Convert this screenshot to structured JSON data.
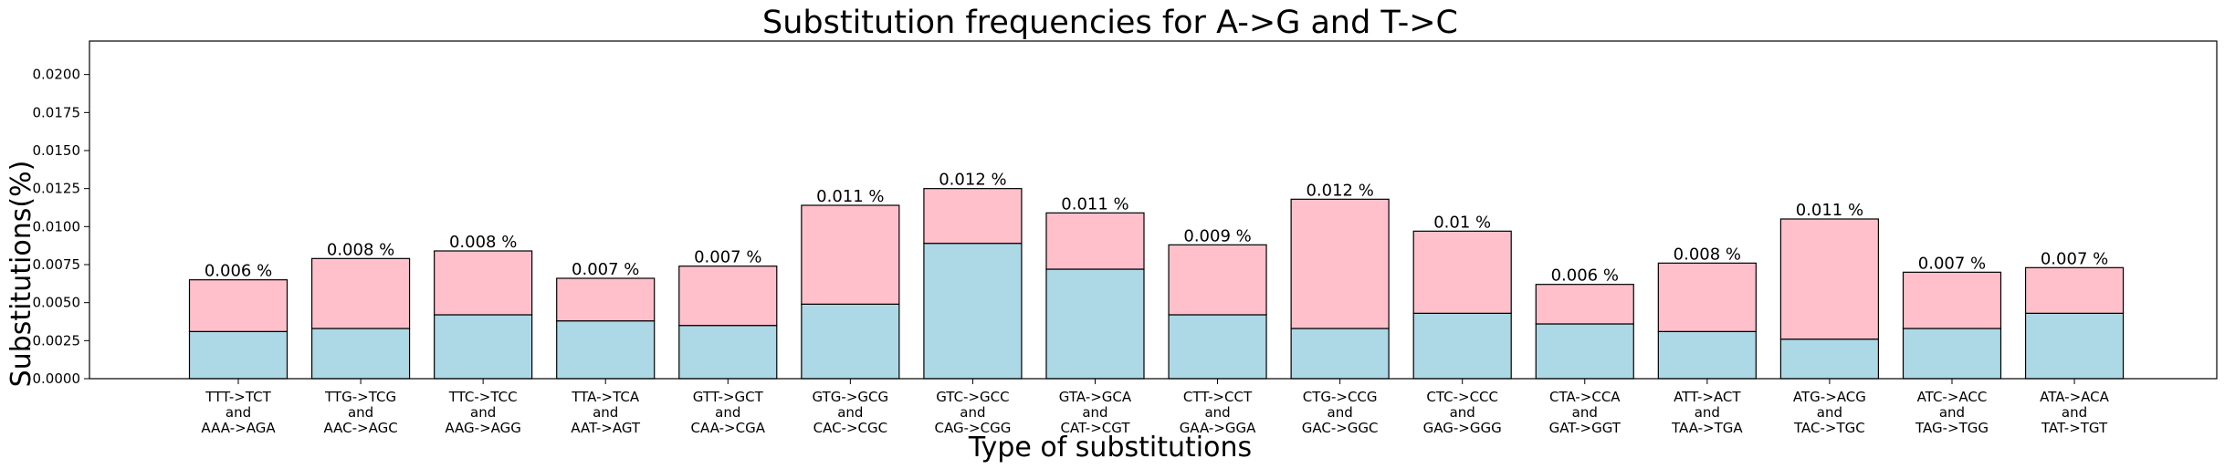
{
  "chart_data": {
    "type": "bar",
    "stacked": true,
    "title": "Substitution frequencies for A->G and T->C",
    "xlabel": "Type of substitutions",
    "ylabel": "Substitutions(%)",
    "ylim": [
      0,
      0.0222
    ],
    "yticks": [
      "0.0000",
      "0.0025",
      "0.0050",
      "0.0075",
      "0.0100",
      "0.0125",
      "0.0150",
      "0.0175",
      "0.0200"
    ],
    "grid": false,
    "categories": [
      [
        "TTT->TCT",
        "and",
        "AAA->AGA"
      ],
      [
        "TTG->TCG",
        "and",
        "AAC->AGC"
      ],
      [
        "TTC->TCC",
        "and",
        "AAG->AGG"
      ],
      [
        "TTA->TCA",
        "and",
        "AAT->AGT"
      ],
      [
        "GTT->GCT",
        "and",
        "CAA->CGA"
      ],
      [
        "GTG->GCG",
        "and",
        "CAC->CGC"
      ],
      [
        "GTC->GCC",
        "and",
        "CAG->CGG"
      ],
      [
        "GTA->GCA",
        "and",
        "CAT->CGT"
      ],
      [
        "CTT->CCT",
        "and",
        "GAA->GGA"
      ],
      [
        "CTG->CCG",
        "and",
        "GAC->GGC"
      ],
      [
        "CTC->CCC",
        "and",
        "GAG->GGG"
      ],
      [
        "CTA->CCA",
        "and",
        "GAT->GGT"
      ],
      [
        "ATT->ACT",
        "and",
        "TAA->TGA"
      ],
      [
        "ATG->ACG",
        "and",
        "TAC->TGC"
      ],
      [
        "ATC->ACC",
        "and",
        "TAG->TGG"
      ],
      [
        "ATA->ACA",
        "and",
        "TAT->TGT"
      ]
    ],
    "series": [
      {
        "color": "#add8e6",
        "values": [
          0.0031,
          0.0033,
          0.0042,
          0.0038,
          0.0035,
          0.0049,
          0.0089,
          0.0072,
          0.0042,
          0.0033,
          0.0043,
          0.0036,
          0.0031,
          0.0026,
          0.0033,
          0.0043
        ]
      },
      {
        "color": "#ffc0cb",
        "values": [
          0.0034,
          0.0046,
          0.0042,
          0.0028,
          0.0039,
          0.0065,
          0.0036,
          0.0037,
          0.0046,
          0.0085,
          0.0054,
          0.0026,
          0.0045,
          0.0079,
          0.0037,
          0.003
        ]
      }
    ],
    "totals": [
      0.0065,
      0.0079,
      0.0084,
      0.0066,
      0.0074,
      0.0114,
      0.0125,
      0.0109,
      0.0088,
      0.0118,
      0.0097,
      0.0062,
      0.0076,
      0.0105,
      0.007,
      0.0073
    ],
    "data_labels": [
      "0.006 %",
      "0.008 %",
      "0.008 %",
      "0.007 %",
      "0.007 %",
      "0.011 %",
      "0.012 %",
      "0.011 %",
      "0.009 %",
      "0.012 %",
      "0.01 %",
      "0.006 %",
      "0.008 %",
      "0.011 %",
      "0.007 %",
      "0.007 %"
    ]
  }
}
